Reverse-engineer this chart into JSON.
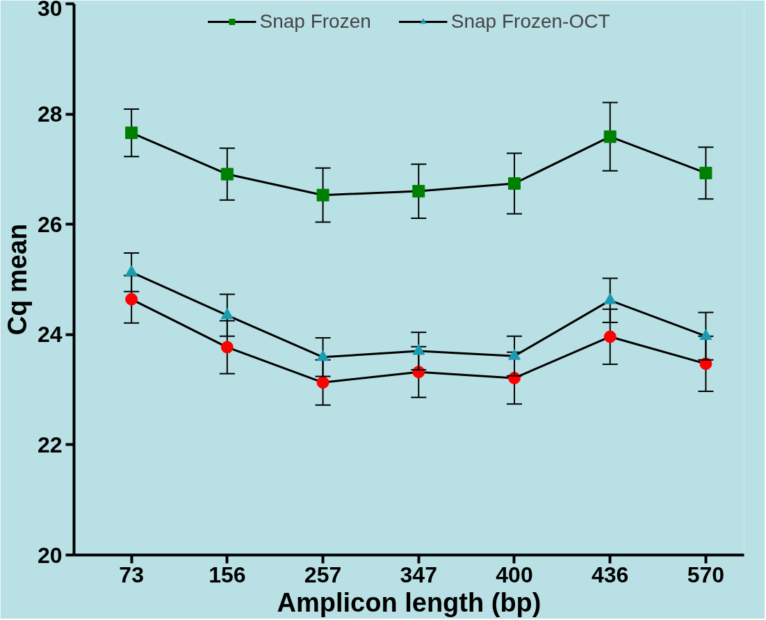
{
  "chart_data": {
    "type": "line",
    "xlabel": "Amplicon length (bp)",
    "ylabel": "Cq mean",
    "categories": [
      "73",
      "156",
      "257",
      "347",
      "400",
      "436",
      "570"
    ],
    "ylim": [
      20,
      30
    ],
    "yticks": [
      20,
      22,
      24,
      26,
      28,
      30
    ],
    "grid": false,
    "legend": "top",
    "line_style": "solid",
    "series": [
      {
        "color": "#ff0000",
        "marker": "circle",
        "values": [
          24.64,
          23.77,
          23.13,
          23.32,
          23.21,
          23.96,
          23.47
        ],
        "errors": [
          0.43,
          0.48,
          0.41,
          0.46,
          0.47,
          0.5,
          0.5
        ]
      },
      {
        "name": "Snap Frozen",
        "color": "#008000",
        "marker": "square",
        "values": [
          27.66,
          26.91,
          26.53,
          26.6,
          26.74,
          27.59,
          26.93
        ],
        "errors": [
          0.43,
          0.47,
          0.49,
          0.49,
          0.55,
          0.62,
          0.47
        ]
      },
      {
        "name": "Snap Frozen-OCT",
        "color": "#1a9bb0",
        "marker": "triangle",
        "values": [
          25.13,
          24.35,
          23.59,
          23.7,
          23.61,
          24.62,
          23.97
        ],
        "errors": [
          0.35,
          0.38,
          0.35,
          0.34,
          0.36,
          0.4,
          0.43
        ]
      }
    ]
  }
}
